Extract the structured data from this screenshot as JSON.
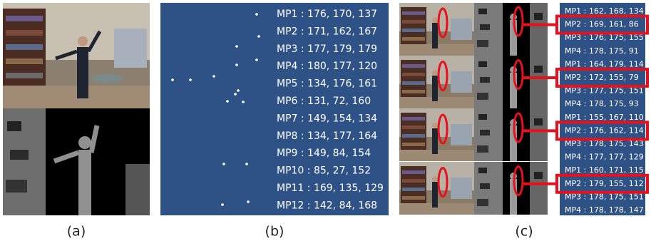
{
  "panel_a": {
    "caption": "(a)"
  },
  "panel_b": {
    "caption": "(b)",
    "lines": [
      "MP1 : 176, 170, 137",
      "MP2 : 171, 162, 167",
      "MP3 : 177, 179, 179",
      "MP4 : 180, 177, 120",
      "MP5 : 134, 176, 161",
      "MP6 : 131, 72, 160",
      "MP7 : 149, 154, 134",
      "MP8 : 134, 177, 164",
      "MP9 : 149, 84, 154",
      "MP10 : 85, 27, 152",
      "MP11 : 169, 135, 129",
      "MP12 : 142, 84, 168"
    ]
  },
  "panel_c": {
    "caption": "(c)",
    "lines": [
      "MP1 : 162, 168, 134",
      "MP2 : 169, 161, 86",
      "MP3 : 176, 175, 155",
      "MP4 : 178, 175, 91",
      "MP1 : 164, 179, 114",
      "MP2 : 172, 155, 79",
      "MP3 : 177, 175, 151",
      "MP4 : 178, 175, 93",
      "MP1 : 155, 167, 110",
      "MP2 : 176, 162, 114",
      "MP3 : 178, 175, 143",
      "MP4 : 177, 177, 129",
      "MP1 : 160, 171, 115",
      "MP2 : 179, 155, 112",
      "MP3 : 178, 175, 151",
      "MP4 : 178, 178, 147"
    ]
  }
}
